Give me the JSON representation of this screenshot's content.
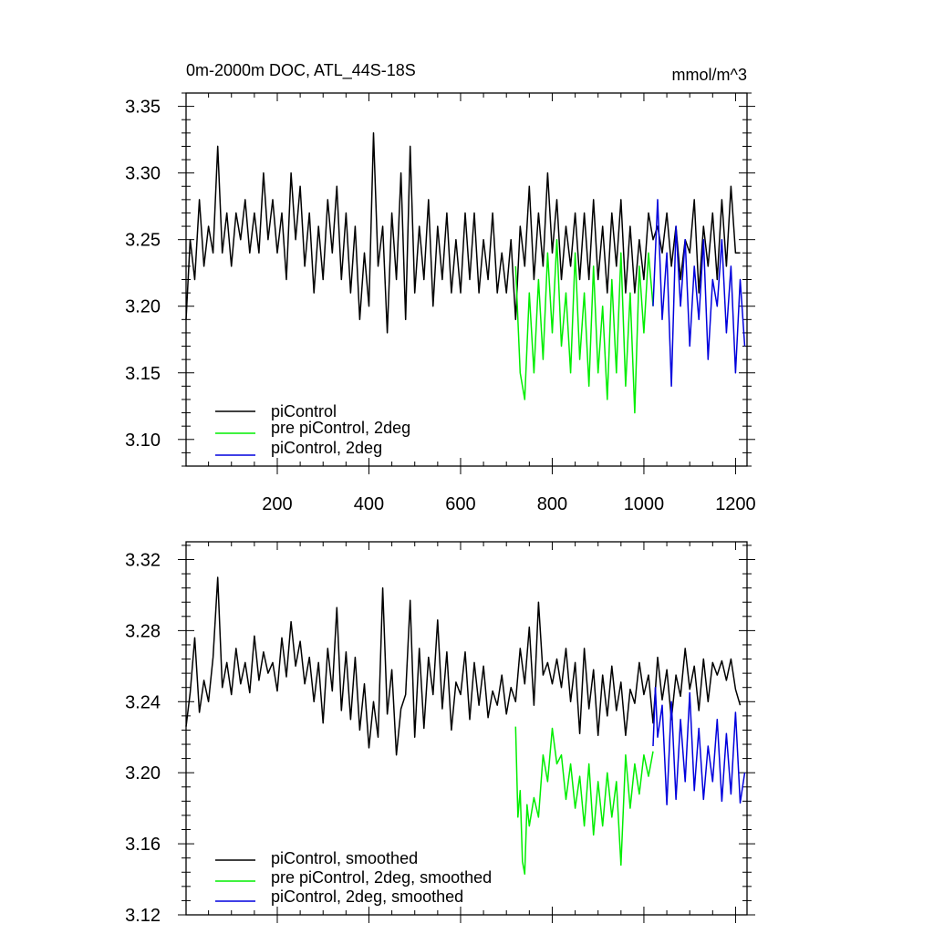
{
  "chart_data": [
    {
      "type": "line",
      "title": "0m-2000m DOC, ATL_44S-18S",
      "units": "mmol/m^3",
      "xlabel": "",
      "ylabel": "",
      "xlim": [
        1,
        1225
      ],
      "ylim": [
        3.08,
        3.36
      ],
      "xticks": [
        200,
        400,
        600,
        800,
        1000,
        1200
      ],
      "yticks": [
        3.1,
        3.15,
        3.2,
        3.25,
        3.3,
        3.35
      ],
      "ytick_labels": [
        "3.10",
        "3.15",
        "3.20",
        "3.25",
        "3.30",
        "3.35"
      ],
      "legend_position": "bottom-left",
      "series": [
        {
          "name": "piControl",
          "color": "#000000",
          "x": [
            1,
            10,
            20,
            30,
            40,
            50,
            60,
            70,
            80,
            90,
            100,
            110,
            120,
            130,
            140,
            150,
            160,
            170,
            180,
            190,
            200,
            210,
            220,
            230,
            240,
            250,
            260,
            270,
            280,
            290,
            300,
            310,
            320,
            330,
            340,
            350,
            360,
            370,
            380,
            390,
            400,
            410,
            420,
            430,
            440,
            450,
            460,
            470,
            480,
            490,
            500,
            510,
            520,
            530,
            540,
            550,
            560,
            570,
            580,
            590,
            600,
            610,
            620,
            630,
            640,
            650,
            660,
            670,
            680,
            690,
            700,
            710,
            720,
            730,
            740,
            750,
            760,
            770,
            780,
            790,
            800,
            810,
            820,
            830,
            840,
            850,
            860,
            870,
            880,
            890,
            900,
            910,
            920,
            930,
            940,
            950,
            960,
            970,
            980,
            990,
            1000,
            1010,
            1020,
            1030,
            1040,
            1050,
            1060,
            1070,
            1080,
            1090,
            1100,
            1110,
            1120,
            1130,
            1140,
            1150,
            1160,
            1170,
            1180,
            1190,
            1200,
            1210
          ],
          "values": [
            3.19,
            3.25,
            3.22,
            3.28,
            3.23,
            3.26,
            3.24,
            3.32,
            3.24,
            3.27,
            3.23,
            3.27,
            3.25,
            3.28,
            3.24,
            3.27,
            3.24,
            3.3,
            3.25,
            3.28,
            3.24,
            3.27,
            3.22,
            3.3,
            3.25,
            3.29,
            3.23,
            3.27,
            3.21,
            3.26,
            3.22,
            3.28,
            3.24,
            3.29,
            3.22,
            3.27,
            3.21,
            3.26,
            3.19,
            3.24,
            3.2,
            3.33,
            3.23,
            3.26,
            3.18,
            3.27,
            3.22,
            3.3,
            3.19,
            3.32,
            3.21,
            3.26,
            3.22,
            3.28,
            3.2,
            3.26,
            3.22,
            3.27,
            3.21,
            3.25,
            3.21,
            3.27,
            3.22,
            3.27,
            3.21,
            3.25,
            3.22,
            3.27,
            3.21,
            3.24,
            3.21,
            3.25,
            3.19,
            3.26,
            3.23,
            3.29,
            3.22,
            3.27,
            3.23,
            3.3,
            3.24,
            3.28,
            3.22,
            3.26,
            3.23,
            3.27,
            3.22,
            3.27,
            3.22,
            3.28,
            3.22,
            3.26,
            3.21,
            3.27,
            3.23,
            3.28,
            3.21,
            3.26,
            3.21,
            3.25,
            3.22,
            3.27,
            3.25,
            3.26,
            3.24,
            3.27,
            3.23,
            3.26,
            3.22,
            3.25,
            3.24,
            3.28,
            3.21,
            3.26,
            3.23,
            3.27,
            3.22,
            3.28,
            3.23,
            3.29,
            3.24,
            3.24
          ]
        },
        {
          "name": "pre piControl, 2deg",
          "color": "#00ee00",
          "x": [
            720,
            730,
            740,
            750,
            760,
            770,
            780,
            790,
            800,
            810,
            820,
            830,
            840,
            850,
            860,
            870,
            880,
            890,
            900,
            910,
            920,
            930,
            940,
            950,
            960,
            970,
            980,
            990,
            1000,
            1010,
            1020
          ],
          "values": [
            3.23,
            3.15,
            3.13,
            3.21,
            3.15,
            3.22,
            3.16,
            3.24,
            3.18,
            3.25,
            3.17,
            3.21,
            3.15,
            3.24,
            3.16,
            3.21,
            3.14,
            3.23,
            3.15,
            3.2,
            3.13,
            3.22,
            3.15,
            3.24,
            3.14,
            3.21,
            3.12,
            3.23,
            3.18,
            3.24,
            3.2
          ]
        },
        {
          "name": "piControl, 2deg",
          "color": "#0000dd",
          "x": [
            1020,
            1030,
            1040,
            1050,
            1060,
            1070,
            1080,
            1090,
            1100,
            1110,
            1120,
            1130,
            1140,
            1150,
            1160,
            1170,
            1180,
            1190,
            1200,
            1210,
            1220
          ],
          "values": [
            3.2,
            3.28,
            3.19,
            3.24,
            3.14,
            3.26,
            3.2,
            3.25,
            3.17,
            3.23,
            3.19,
            3.25,
            3.16,
            3.22,
            3.2,
            3.25,
            3.18,
            3.23,
            3.15,
            3.22,
            3.17
          ]
        }
      ]
    },
    {
      "type": "line",
      "title": "",
      "xlabel": "",
      "ylabel": "",
      "xlim": [
        1,
        1225
      ],
      "ylim": [
        3.12,
        3.33
      ],
      "xticks": [
        200,
        400,
        600,
        800,
        1000,
        1200
      ],
      "yticks": [
        3.12,
        3.16,
        3.2,
        3.24,
        3.28,
        3.32
      ],
      "ytick_labels": [
        "3.12",
        "3.16",
        "3.20",
        "3.24",
        "3.28",
        "3.32"
      ],
      "legend_position": "bottom-left",
      "series": [
        {
          "name": "piControl, smoothed",
          "color": "#000000",
          "x": [
            1,
            10,
            20,
            30,
            40,
            50,
            60,
            70,
            80,
            90,
            100,
            110,
            120,
            130,
            140,
            150,
            160,
            170,
            180,
            190,
            200,
            210,
            220,
            230,
            240,
            250,
            260,
            270,
            280,
            290,
            300,
            310,
            320,
            330,
            340,
            350,
            360,
            370,
            380,
            390,
            400,
            410,
            420,
            430,
            440,
            450,
            460,
            470,
            480,
            490,
            500,
            510,
            520,
            530,
            540,
            550,
            560,
            570,
            580,
            590,
            600,
            610,
            620,
            630,
            640,
            650,
            660,
            670,
            680,
            690,
            700,
            710,
            720,
            730,
            740,
            750,
            760,
            770,
            780,
            790,
            800,
            810,
            820,
            830,
            840,
            850,
            860,
            870,
            880,
            890,
            900,
            910,
            920,
            930,
            940,
            950,
            960,
            970,
            980,
            990,
            1000,
            1010,
            1020,
            1030,
            1040,
            1050,
            1060,
            1070,
            1080,
            1090,
            1100,
            1110,
            1120,
            1130,
            1140,
            1150,
            1160,
            1170,
            1180,
            1190,
            1200,
            1210
          ],
          "values": [
            3.226,
            3.245,
            3.276,
            3.234,
            3.252,
            3.24,
            3.265,
            3.31,
            3.248,
            3.262,
            3.244,
            3.27,
            3.25,
            3.262,
            3.245,
            3.277,
            3.252,
            3.268,
            3.256,
            3.262,
            3.246,
            3.276,
            3.254,
            3.285,
            3.26,
            3.274,
            3.25,
            3.265,
            3.24,
            3.262,
            3.228,
            3.27,
            3.246,
            3.293,
            3.235,
            3.268,
            3.23,
            3.265,
            3.224,
            3.25,
            3.214,
            3.24,
            3.22,
            3.304,
            3.233,
            3.258,
            3.21,
            3.236,
            3.244,
            3.297,
            3.22,
            3.27,
            3.225,
            3.265,
            3.244,
            3.286,
            3.236,
            3.268,
            3.224,
            3.251,
            3.244,
            3.268,
            3.23,
            3.262,
            3.238,
            3.26,
            3.231,
            3.246,
            3.238,
            3.255,
            3.233,
            3.248,
            3.24,
            3.27,
            3.25,
            3.282,
            3.238,
            3.296,
            3.255,
            3.262,
            3.25,
            3.264,
            3.248,
            3.27,
            3.24,
            3.262,
            3.222,
            3.27,
            3.236,
            3.258,
            3.221,
            3.255,
            3.232,
            3.26,
            3.235,
            3.251,
            3.221,
            3.247,
            3.239,
            3.262,
            3.244,
            3.255,
            3.228,
            3.265,
            3.241,
            3.258,
            3.23,
            3.255,
            3.243,
            3.27,
            3.247,
            3.26,
            3.235,
            3.264,
            3.24,
            3.262,
            3.255,
            3.263,
            3.252,
            3.264,
            3.247,
            3.238
          ]
        },
        {
          "name": "pre piControl, 2deg, smoothed",
          "color": "#00ee00",
          "x": [
            720,
            725,
            730,
            735,
            740,
            745,
            750,
            760,
            770,
            780,
            790,
            800,
            810,
            820,
            830,
            840,
            850,
            860,
            870,
            880,
            890,
            900,
            910,
            920,
            930,
            940,
            950,
            960,
            970,
            980,
            990,
            1000,
            1010,
            1020
          ],
          "values": [
            3.226,
            3.175,
            3.19,
            3.15,
            3.143,
            3.182,
            3.17,
            3.186,
            3.175,
            3.21,
            3.195,
            3.225,
            3.205,
            3.21,
            3.185,
            3.205,
            3.18,
            3.198,
            3.17,
            3.205,
            3.165,
            3.195,
            3.17,
            3.2,
            3.175,
            3.195,
            3.148,
            3.21,
            3.18,
            3.205,
            3.188,
            3.21,
            3.198,
            3.212
          ]
        },
        {
          "name": "piControl, 2deg, smoothed",
          "color": "#0000dd",
          "x": [
            1020,
            1025,
            1030,
            1040,
            1050,
            1060,
            1070,
            1080,
            1090,
            1100,
            1110,
            1120,
            1130,
            1140,
            1150,
            1160,
            1170,
            1180,
            1190,
            1200,
            1210,
            1220
          ],
          "values": [
            3.215,
            3.248,
            3.22,
            3.238,
            3.182,
            3.24,
            3.185,
            3.23,
            3.195,
            3.245,
            3.19,
            3.225,
            3.185,
            3.215,
            3.195,
            3.23,
            3.184,
            3.222,
            3.188,
            3.234,
            3.183,
            3.2
          ]
        }
      ]
    }
  ]
}
